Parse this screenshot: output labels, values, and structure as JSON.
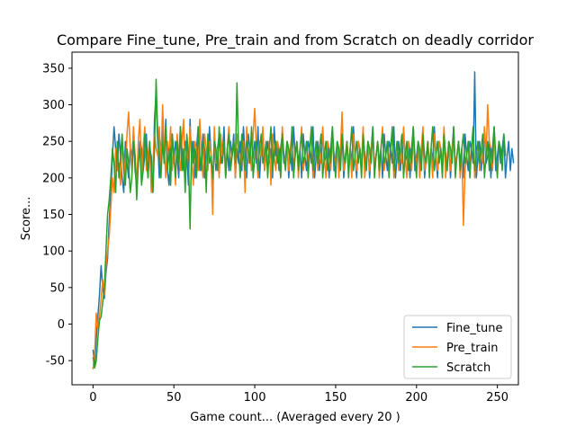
{
  "chart_data": {
    "type": "line",
    "title": "Compare Fine_tune, Pre_train and from Scratch on deadly corridor",
    "xlabel": "Game count... (Averaged every 20 )",
    "ylabel": "Score...",
    "xlim": [
      -13,
      263
    ],
    "ylim": [
      -83,
      372
    ],
    "xticks": [
      0,
      50,
      100,
      150,
      200,
      250
    ],
    "yticks": [
      -50,
      0,
      50,
      100,
      150,
      200,
      250,
      300,
      350
    ],
    "legend_position": "lower-right",
    "grid": false,
    "series": [
      {
        "name": "Fine_tune",
        "color": "#1f77b4",
        "values": [
          -35,
          -55,
          -20,
          10,
          40,
          80,
          50,
          35,
          70,
          90,
          140,
          180,
          230,
          270,
          240,
          210,
          260,
          230,
          200,
          180,
          250,
          220,
          200,
          240,
          230,
          260,
          210,
          190,
          220,
          250,
          240,
          210,
          230,
          260,
          200,
          240,
          230,
          180,
          280,
          315,
          250,
          200,
          240,
          270,
          220,
          280,
          210,
          190,
          240,
          260,
          220,
          250,
          230,
          200,
          270,
          240,
          210,
          250,
          230,
          190,
          280,
          220,
          250,
          200,
          240,
          270,
          210,
          230,
          260,
          200,
          240,
          220,
          270,
          230,
          180,
          250,
          210,
          240,
          260,
          220,
          230,
          270,
          200,
          240,
          210,
          250,
          230,
          260,
          200,
          240,
          220,
          250,
          210,
          270,
          230,
          200,
          260,
          240,
          210,
          230,
          250,
          220,
          270,
          200,
          240,
          260,
          210,
          230,
          250,
          220,
          240,
          200,
          270,
          230,
          250,
          210,
          240,
          260,
          220,
          230,
          250,
          200,
          240,
          210,
          270,
          230,
          250,
          220,
          240,
          200,
          260,
          230,
          210,
          250,
          240,
          220,
          270,
          200,
          230,
          250,
          210,
          240,
          260,
          220,
          230,
          250,
          200,
          240,
          270,
          210,
          230,
          250,
          220,
          240,
          260,
          200,
          230,
          250,
          210,
          240,
          220,
          270,
          230,
          200,
          250,
          240,
          210,
          260,
          230,
          220,
          250,
          200,
          240,
          270,
          210,
          230,
          250,
          220,
          240,
          200,
          260,
          230,
          210,
          250,
          240,
          220,
          270,
          200,
          230,
          250,
          210,
          240,
          260,
          220,
          230,
          250,
          200,
          240,
          270,
          210,
          230,
          250,
          220,
          240,
          260,
          200,
          230,
          250,
          210,
          240,
          220,
          270,
          230,
          200,
          250,
          240,
          210,
          260,
          230,
          220,
          250,
          200,
          240,
          270,
          210,
          230,
          250,
          220,
          240,
          200,
          260,
          230,
          210,
          250,
          240,
          220,
          345,
          200,
          230,
          250,
          210,
          240,
          260,
          220,
          230,
          250,
          200,
          240,
          270,
          210,
          230,
          250,
          220,
          240,
          260,
          200,
          230,
          250,
          210,
          240,
          220
        ],
        "note_values_are_estimated": true
      },
      {
        "name": "Pre_train",
        "color": "#ff7f0e",
        "values": [
          -62,
          -40,
          15,
          -5,
          10,
          35,
          60,
          40,
          80,
          100,
          120,
          160,
          200,
          180,
          240,
          210,
          220,
          190,
          250,
          230,
          200,
          260,
          290,
          240,
          210,
          270,
          230,
          190,
          250,
          280,
          200,
          240,
          270,
          210,
          230,
          250,
          180,
          220,
          260,
          240,
          230,
          270,
          210,
          300,
          240,
          200,
          250,
          230,
          270,
          210,
          240,
          190,
          260,
          230,
          210,
          250,
          280,
          200,
          240,
          220,
          270,
          230,
          190,
          250,
          240,
          210,
          280,
          230,
          200,
          260,
          240,
          210,
          250,
          230,
          150,
          270,
          220,
          240,
          200,
          260,
          230,
          250,
          210,
          240,
          270,
          220,
          230,
          250,
          200,
          260,
          240,
          210,
          230,
          250,
          180,
          270,
          220,
          240,
          210,
          260,
          295,
          240,
          200,
          250,
          230,
          270,
          210,
          240,
          220,
          250,
          190,
          260,
          230,
          210,
          250,
          240,
          200,
          270,
          230,
          220,
          250,
          210,
          240,
          260,
          220,
          230,
          250,
          200,
          240,
          270,
          210,
          230,
          250,
          220,
          240,
          260,
          200,
          230,
          250,
          210,
          240,
          220,
          270,
          230,
          200,
          250,
          240,
          210,
          260,
          230,
          220,
          250,
          200,
          240,
          290,
          210,
          230,
          250,
          220,
          240,
          200,
          260,
          230,
          210,
          250,
          240,
          220,
          270,
          200,
          230,
          250,
          210,
          240,
          260,
          220,
          230,
          250,
          200,
          240,
          270,
          210,
          230,
          250,
          220,
          240,
          260,
          200,
          230,
          250,
          210,
          240,
          220,
          270,
          230,
          200,
          250,
          240,
          210,
          260,
          230,
          220,
          250,
          200,
          240,
          270,
          210,
          230,
          250,
          220,
          240,
          200,
          260,
          230,
          210,
          250,
          240,
          220,
          270,
          200,
          230,
          250,
          210,
          240,
          260,
          220,
          230,
          250,
          200,
          240,
          135,
          210,
          230,
          250,
          220,
          240,
          260,
          200,
          230,
          250,
          210,
          240,
          220,
          270,
          230,
          300,
          250,
          240,
          210,
          260,
          230
        ],
        "note_values_are_estimated": true
      },
      {
        "name": "Scratch",
        "color": "#2ca02c",
        "values": [
          -45,
          -60,
          -50,
          -20,
          5,
          10,
          30,
          50,
          100,
          150,
          170,
          200,
          240,
          220,
          180,
          250,
          200,
          230,
          260,
          210,
          190,
          240,
          220,
          180,
          200,
          250,
          230,
          170,
          220,
          240,
          190,
          210,
          260,
          230,
          200,
          250,
          220,
          180,
          240,
          335,
          260,
          230,
          200,
          250,
          220,
          270,
          210,
          240,
          190,
          260,
          230,
          200,
          250,
          220,
          270,
          210,
          240,
          180,
          260,
          230,
          130,
          250,
          220,
          240,
          200,
          270,
          230,
          210,
          250,
          240,
          180,
          260,
          220,
          230,
          200,
          250,
          240,
          210,
          270,
          230,
          220,
          250,
          200,
          240,
          260,
          210,
          230,
          250,
          220,
          330,
          240,
          200,
          260,
          230,
          210,
          250,
          240,
          220,
          270,
          200,
          230,
          250,
          210,
          240,
          260,
          220,
          230,
          250,
          200,
          240,
          270,
          210,
          230,
          250,
          220,
          240,
          200,
          260,
          230,
          210,
          250,
          240,
          220,
          270,
          200,
          230,
          250,
          210,
          240,
          260,
          220,
          230,
          250,
          200,
          240,
          270,
          210,
          230,
          250,
          220,
          240,
          260,
          200,
          230,
          250,
          210,
          240,
          220,
          270,
          230,
          200,
          250,
          240,
          210,
          260,
          230,
          220,
          250,
          200,
          240,
          270,
          210,
          230,
          250,
          220,
          240,
          200,
          260,
          230,
          210,
          250,
          240,
          220,
          270,
          200,
          230,
          250,
          210,
          240,
          260,
          220,
          230,
          250,
          200,
          240,
          270,
          210,
          230,
          250,
          220,
          240,
          260,
          200,
          230,
          250,
          210,
          240,
          220,
          270,
          230,
          200,
          250,
          240,
          210,
          260,
          230,
          220,
          250,
          200,
          240,
          270,
          210,
          230,
          250,
          220,
          240,
          200,
          260,
          230,
          210,
          250,
          240,
          220,
          270,
          200,
          230,
          250,
          210,
          240,
          260,
          220,
          230,
          250,
          200,
          240,
          270,
          210,
          230,
          250,
          220,
          240,
          260,
          200,
          230,
          250,
          210,
          240,
          220,
          270,
          230,
          200,
          250,
          240,
          210,
          260,
          230
        ],
        "note_values_are_estimated": true
      }
    ]
  }
}
